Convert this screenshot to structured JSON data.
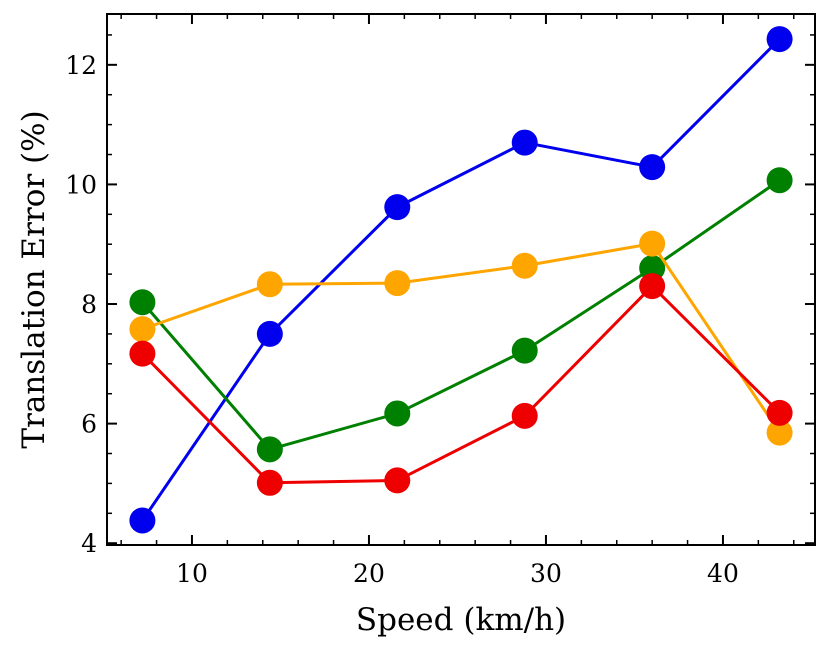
{
  "chart_data": {
    "type": "line",
    "title": "",
    "xlabel": "Speed (km/h)",
    "ylabel": "Translation Error (%)",
    "xlim": [
      5.2,
      45.2
    ],
    "ylim": [
      3.97,
      12.85
    ],
    "xticks": [
      10,
      20,
      30,
      40
    ],
    "yticks": [
      4,
      6,
      8,
      10,
      12
    ],
    "x_minor_step": 2,
    "y_minor_step": 0.5,
    "grid": false,
    "x": [
      7.2,
      14.4,
      21.6,
      28.8,
      36.0,
      43.2
    ],
    "series": [
      {
        "name": "blue series",
        "color": "#0000ee",
        "values": [
          4.38,
          7.5,
          9.62,
          10.7,
          10.29,
          12.43
        ]
      },
      {
        "name": "green series",
        "color": "#008000",
        "values": [
          8.03,
          5.57,
          6.17,
          7.22,
          8.6,
          10.07
        ]
      },
      {
        "name": "orange series",
        "color": "#ffa500",
        "values": [
          7.58,
          8.33,
          8.35,
          8.64,
          9.01,
          5.85
        ]
      },
      {
        "name": "red series",
        "color": "#ee0000",
        "values": [
          7.17,
          5.01,
          5.05,
          6.13,
          8.3,
          6.18
        ]
      }
    ]
  }
}
